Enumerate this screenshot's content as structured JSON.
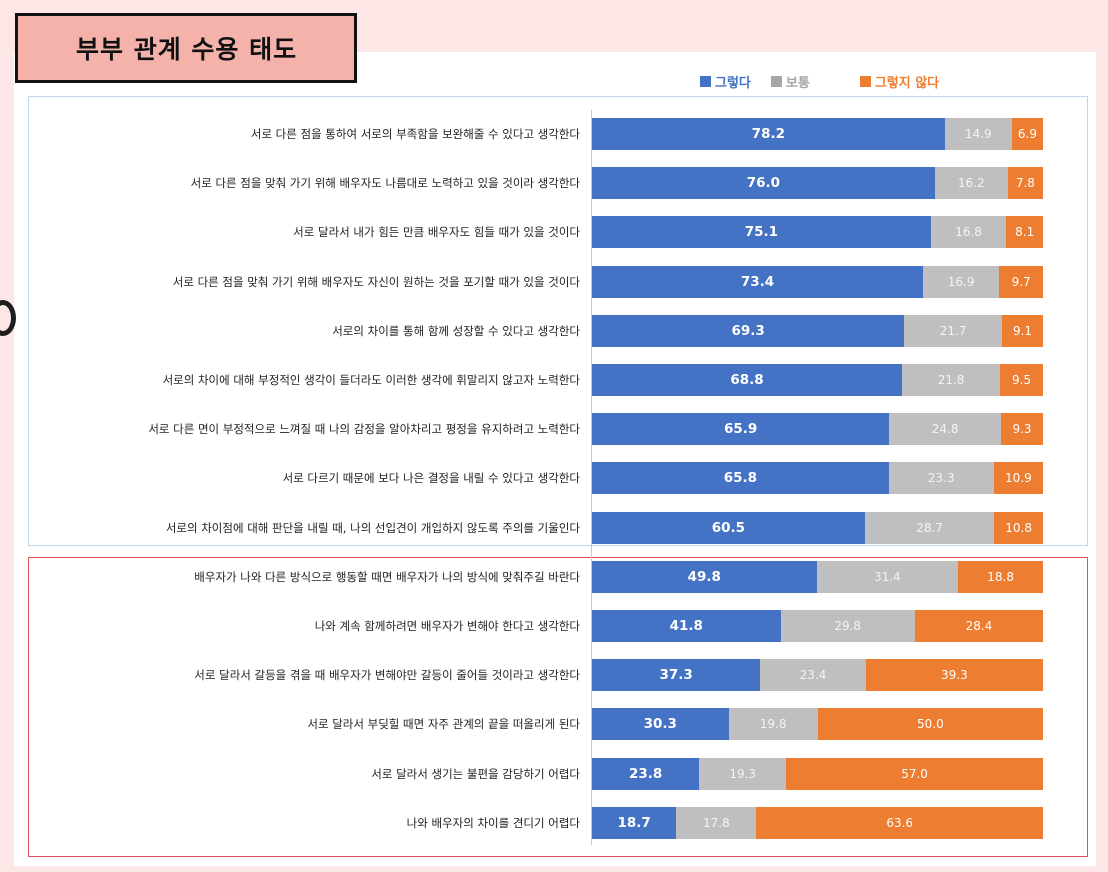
{
  "title": "부부 관계 수용 태도",
  "colors": {
    "yes": "#4472c4",
    "neutral": "#bfbfbf",
    "no": "#ed7d31"
  },
  "legend": [
    {
      "label": "그렇다",
      "color": "#4472c4"
    },
    {
      "label": "보통",
      "color": "#a6a6a6"
    },
    {
      "label": "그렇지 않다",
      "color": "#ed7d31"
    }
  ],
  "chart_data": {
    "type": "bar",
    "orientation": "horizontal",
    "stacked": true,
    "categories": [
      "서로 다른 점을 통하여 서로의 부족함을 보완해줄 수 있다고 생각한다",
      "서로 다른 점을 맞춰 가기 위해 배우자도 나름대로 노력하고 있을 것이라 생각한다",
      "서로 달라서 내가 힘든 만큼 배우자도 힘들 때가 있을 것이다",
      "서로 다른 점을 맞춰 가기 위해 배우자도 자신이 원하는 것을 포기할 때가 있을 것이다",
      "서로의 차이를 통해 함께 성장할 수 있다고 생각한다",
      "서로의 차이에 대해 부정적인 생각이 들더라도 이러한 생각에 휘말리지 않고자 노력한다",
      "서로 다른 면이 부정적으로 느껴질 때 나의 감정을 알아차리고 평정을 유지하려고 노력한다",
      "서로 다르기 때문에 보다 나은 결정을 내릴 수 있다고 생각한다",
      "서로의 차이점에 대해 판단을 내릴 때, 나의 선입견이 개입하지 않도록 주의를 기울인다",
      "배우자가 나와 다른 방식으로 행동할 때면 배우자가 나의 방식에 맞춰주길 바란다",
      "나와 계속 함께하려면 배우자가 변해야 한다고 생각한다",
      "서로 달라서 갈등을 겪을 때 배우자가 변해야만 갈등이 줄어들 것이라고 생각한다",
      "서로 달라서 부딪힐 때면 자주 관계의 끝을 떠올리게 된다",
      "서로 달라서 생기는 불편을 감당하기 어렵다",
      "나와 배우자의 차이를 견디기 어렵다"
    ],
    "series": [
      {
        "name": "그렇다",
        "values": [
          78.2,
          76.0,
          75.1,
          73.4,
          69.3,
          68.8,
          65.9,
          65.8,
          60.5,
          49.8,
          41.8,
          37.3,
          30.3,
          23.8,
          18.7
        ]
      },
      {
        "name": "보통",
        "values": [
          14.9,
          16.2,
          16.8,
          16.9,
          21.7,
          21.8,
          24.8,
          23.3,
          28.7,
          31.4,
          29.8,
          23.4,
          19.8,
          19.3,
          17.8
        ]
      },
      {
        "name": "그렇지 않다",
        "values": [
          6.9,
          7.8,
          8.1,
          9.7,
          9.1,
          9.5,
          9.3,
          10.9,
          10.8,
          18.8,
          28.4,
          39.3,
          50.0,
          57.0,
          63.6
        ]
      }
    ],
    "value_labels": [
      [
        "78.2",
        "14.9",
        "6.9"
      ],
      [
        "76.0",
        "16.2",
        "7.8"
      ],
      [
        "75.1",
        "16.8",
        "8.1"
      ],
      [
        "73.4",
        "16.9",
        "9.7"
      ],
      [
        "69.3",
        "21.7",
        "9.1"
      ],
      [
        "68.8",
        "21.8",
        "9.5"
      ],
      [
        "65.9",
        "24.8",
        "9.3"
      ],
      [
        "65.8",
        "23.3",
        "10.9"
      ],
      [
        "60.5",
        "28.7",
        "10.8"
      ],
      [
        "49.8",
        "31.4",
        "18.8"
      ],
      [
        "41.8",
        "29.8",
        "28.4"
      ],
      [
        "37.3",
        "23.4",
        "39.3"
      ],
      [
        "30.3",
        "19.8",
        "50.0"
      ],
      [
        "23.8",
        "19.3",
        "57.0"
      ],
      [
        "18.7",
        "17.8",
        "63.6"
      ]
    ],
    "groups": [
      {
        "name": "positive",
        "rows": [
          0,
          8
        ],
        "outline": "#c4d4ee"
      },
      {
        "name": "negative",
        "rows": [
          9,
          14
        ],
        "outline": "#e0525a"
      }
    ],
    "xlim": [
      0,
      100
    ],
    "legend_position": "top-right",
    "grid": false
  }
}
